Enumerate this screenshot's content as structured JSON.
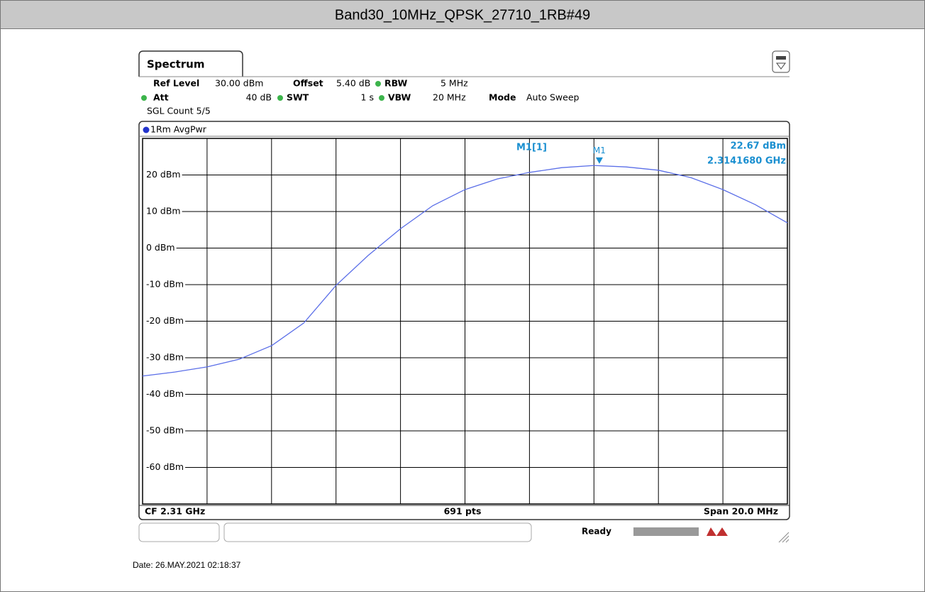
{
  "chart_data": {
    "type": "line",
    "title": "Band30_10MHz_QPSK_27710_1RB#49",
    "tab": "Spectrum",
    "settings": {
      "ref_level_label": "Ref Level",
      "ref_level": "30.00 dBm",
      "offset_label": "Offset",
      "offset": "5.40 dB",
      "rbw_label": "RBW",
      "rbw": "5 MHz",
      "att_label": "Att",
      "att": "40 dB",
      "swt_label": "SWT",
      "swt": "1 s",
      "vbw_label": "VBW",
      "vbw": "20 MHz",
      "mode_label": "Mode",
      "mode": "Auto Sweep",
      "count": "SGL Count 5/5"
    },
    "trace_label": "1Rm AvgPwr",
    "marker_table_label": "M1[1]",
    "markers": [
      {
        "name": "M1",
        "x": 2.314168,
        "y": 22.67,
        "x_label": "2.3141680 GHz",
        "y_label": "22.67 dBm"
      }
    ],
    "footer": {
      "center_freq": "CF 2.31 GHz",
      "points": "691 pts",
      "span": "Span 20.0 MHz"
    },
    "status": "Ready",
    "date": "Date: 26.MAY.2021  02:18:37",
    "x": [
      2.3,
      2.301,
      2.302,
      2.303,
      2.304,
      2.305,
      2.306,
      2.307,
      2.308,
      2.309,
      2.31,
      2.311,
      2.312,
      2.313,
      2.314,
      2.315,
      2.316,
      2.317,
      2.318,
      2.319,
      2.32
    ],
    "series": [
      {
        "name": "1Rm AvgPwr",
        "color": "#5a6ee8",
        "values": [
          -35.0,
          -33.9,
          -32.5,
          -30.4,
          -26.7,
          -20.5,
          -10.2,
          -2.0,
          5.3,
          11.6,
          16.0,
          18.9,
          20.7,
          22.0,
          22.6,
          22.2,
          21.3,
          19.3,
          16.0,
          11.9,
          6.9
        ]
      }
    ],
    "xlim": [
      2.3,
      2.32
    ],
    "ylim": [
      -70,
      30
    ],
    "yticks": [
      {
        "value": 20,
        "label": "20 dBm"
      },
      {
        "value": 10,
        "label": "10 dBm"
      },
      {
        "value": 0,
        "label": "0 dBm"
      },
      {
        "value": -10,
        "label": "-10 dBm"
      },
      {
        "value": -20,
        "label": "-20 dBm"
      },
      {
        "value": -30,
        "label": "-30 dBm"
      },
      {
        "value": -40,
        "label": "-40 dBm"
      },
      {
        "value": -50,
        "label": "-50 dBm"
      },
      {
        "value": -60,
        "label": "-60 dBm"
      }
    ],
    "grid": true
  }
}
